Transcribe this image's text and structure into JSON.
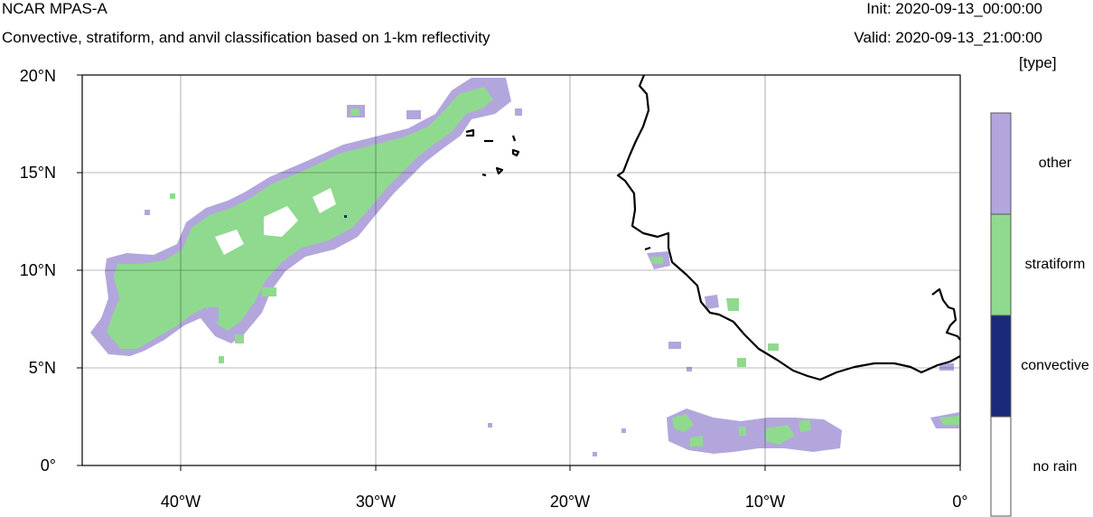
{
  "header": {
    "title": "NCAR MPAS-A",
    "subtitle": "Convective, stratiform, and anvil classification based on 1-km reflectivity",
    "init": "Init: 2020-09-13_00:00:00",
    "valid": "Valid: 2020-09-13_21:00:00"
  },
  "axes": {
    "y_ticks": [
      "20°N",
      "15°N",
      "10°N",
      "5°N",
      "0°"
    ],
    "x_ticks": [
      "40°W",
      "30°W",
      "20°W",
      "10°W",
      "0°"
    ]
  },
  "colorbar": {
    "units": "[type]",
    "labels": [
      "other",
      "stratiform",
      "convective",
      "no rain"
    ],
    "colors": [
      "#b3a6dd",
      "#8fda8f",
      "#1a2a78",
      "#ffffff"
    ]
  },
  "colors": {
    "stratiform": "#8fda8f",
    "other": "#b3a6dd",
    "convective": "#1a2a78",
    "coastline": "#000000",
    "grid": "#000000"
  }
}
